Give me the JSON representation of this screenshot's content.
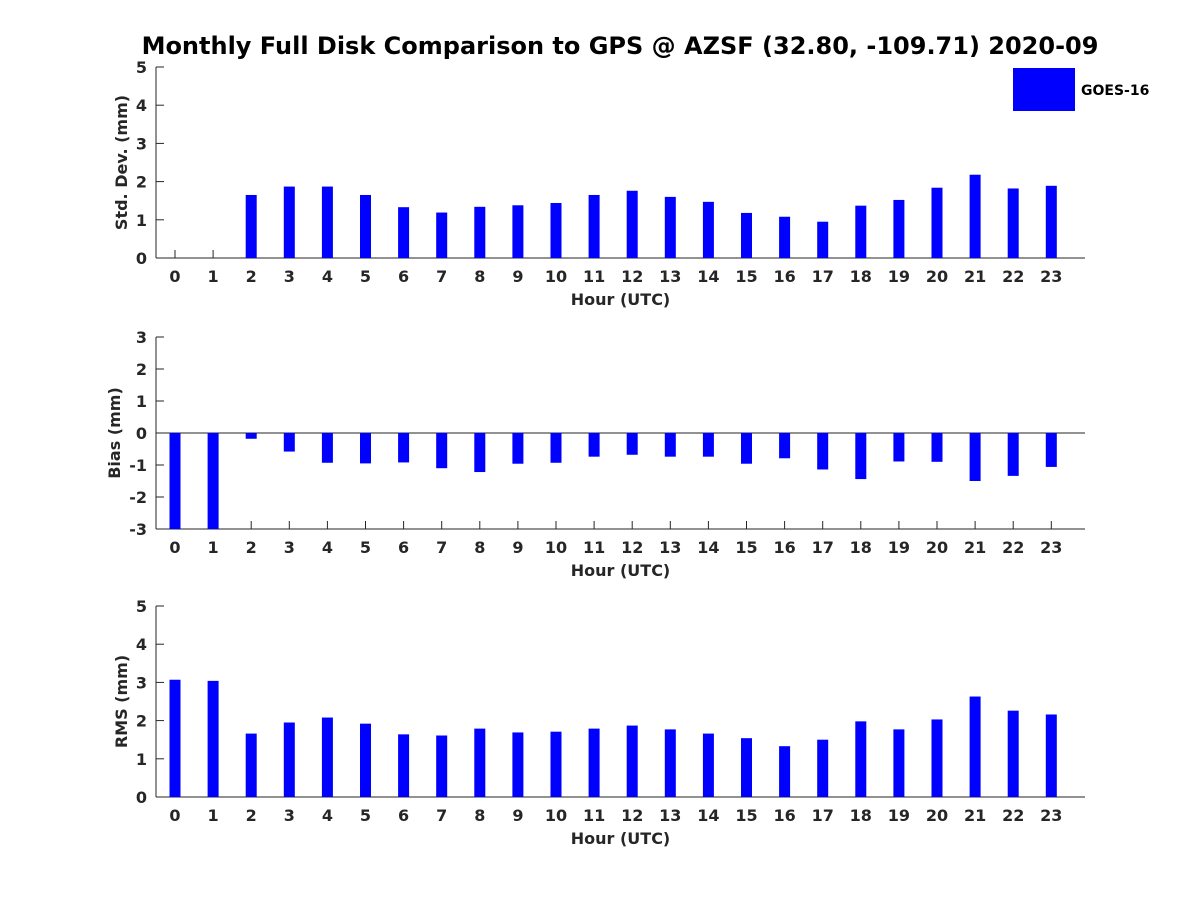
{
  "title": "Monthly Full Disk Comparison to GPS @ AZSF (32.80, -109.71) 2020-09",
  "legend": {
    "label": "GOES-16",
    "color": "#0000ff",
    "placement": "top-right"
  },
  "colors": {
    "bar": "#0000ff",
    "axis": "#262626",
    "background": "#ffffff"
  },
  "chart_data": [
    {
      "type": "bar",
      "name": "std-dev",
      "xlabel": "Hour (UTC)",
      "ylabel": "Std. Dev. (mm)",
      "ylim": [
        0,
        5
      ],
      "yticks": [
        0,
        1,
        2,
        3,
        4,
        5
      ],
      "grid": false,
      "categories": [
        "0",
        "1",
        "2",
        "3",
        "4",
        "5",
        "6",
        "7",
        "8",
        "9",
        "10",
        "11",
        "12",
        "13",
        "14",
        "15",
        "16",
        "17",
        "18",
        "19",
        "20",
        "21",
        "22",
        "23"
      ],
      "series": [
        {
          "name": "GOES-16",
          "values": [
            0,
            0,
            1.65,
            1.87,
            1.87,
            1.65,
            1.33,
            1.19,
            1.34,
            1.38,
            1.44,
            1.65,
            1.76,
            1.6,
            1.47,
            1.18,
            1.08,
            0.95,
            1.37,
            1.52,
            1.84,
            2.18,
            1.82,
            1.89
          ]
        }
      ]
    },
    {
      "type": "bar",
      "name": "bias",
      "xlabel": "Hour (UTC)",
      "ylabel": "Bias (mm)",
      "ylim": [
        -3,
        3
      ],
      "yticks": [
        -3,
        -2,
        -1,
        0,
        1,
        2,
        3
      ],
      "grid": false,
      "categories": [
        "0",
        "1",
        "2",
        "3",
        "4",
        "5",
        "6",
        "7",
        "8",
        "9",
        "10",
        "11",
        "12",
        "13",
        "14",
        "15",
        "16",
        "17",
        "18",
        "19",
        "20",
        "21",
        "22",
        "23"
      ],
      "series": [
        {
          "name": "GOES-16",
          "values": [
            -3.05,
            -3.0,
            -0.18,
            -0.58,
            -0.93,
            -0.95,
            -0.92,
            -1.1,
            -1.22,
            -0.96,
            -0.93,
            -0.74,
            -0.68,
            -0.74,
            -0.74,
            -0.96,
            -0.79,
            -1.14,
            -1.44,
            -0.89,
            -0.9,
            -1.5,
            -1.34,
            -1.06
          ]
        }
      ]
    },
    {
      "type": "bar",
      "name": "rms",
      "xlabel": "Hour (UTC)",
      "ylabel": "RMS (mm)",
      "ylim": [
        0,
        5
      ],
      "yticks": [
        0,
        1,
        2,
        3,
        4,
        5
      ],
      "grid": false,
      "categories": [
        "0",
        "1",
        "2",
        "3",
        "4",
        "5",
        "6",
        "7",
        "8",
        "9",
        "10",
        "11",
        "12",
        "13",
        "14",
        "15",
        "16",
        "17",
        "18",
        "19",
        "20",
        "21",
        "22",
        "23"
      ],
      "series": [
        {
          "name": "GOES-16",
          "values": [
            3.07,
            3.04,
            1.66,
            1.95,
            2.08,
            1.92,
            1.64,
            1.61,
            1.79,
            1.69,
            1.71,
            1.79,
            1.87,
            1.77,
            1.66,
            1.54,
            1.33,
            1.5,
            1.98,
            1.77,
            2.03,
            2.63,
            2.26,
            2.16
          ]
        }
      ]
    }
  ]
}
